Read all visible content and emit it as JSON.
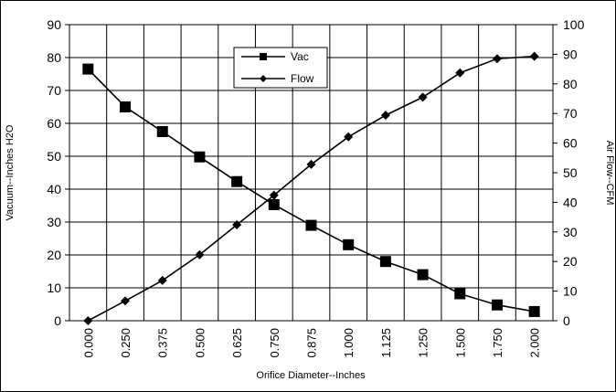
{
  "chart_data": {
    "type": "line",
    "categories": [
      "0.000",
      "0.250",
      "0.375",
      "0.500",
      "0.625",
      "0.750",
      "0.875",
      "1.000",
      "1.125",
      "1.250",
      "1.500",
      "1.750",
      "2.000"
    ],
    "xlabel": "Orifice Diameter--Inches",
    "ylabel": "Vacuum--Inches H2O",
    "y2label": "Air Flow--CFM",
    "ylim": [
      0,
      90
    ],
    "y2lim": [
      0,
      100
    ],
    "yticks": [
      "0",
      "10",
      "20",
      "30",
      "40",
      "50",
      "60",
      "70",
      "80",
      "90"
    ],
    "y2ticks": [
      "0",
      "10",
      "20",
      "30",
      "40",
      "50",
      "60",
      "70",
      "80",
      "90",
      "100"
    ],
    "grid": true,
    "legend_position": "top-center",
    "series": [
      {
        "name": "Vac",
        "axis": "left",
        "marker": "square",
        "values": [
          76.5,
          65,
          57.5,
          49.8,
          42.3,
          35.3,
          29,
          23.1,
          18,
          14,
          8.2,
          4.8,
          2.8
        ]
      },
      {
        "name": "Flow",
        "axis": "right",
        "marker": "diamond",
        "values": [
          0,
          6.7,
          13.6,
          22.3,
          32.4,
          42.4,
          52.8,
          62.1,
          69.4,
          75.5,
          83.7,
          88.5,
          89.3
        ]
      }
    ]
  }
}
